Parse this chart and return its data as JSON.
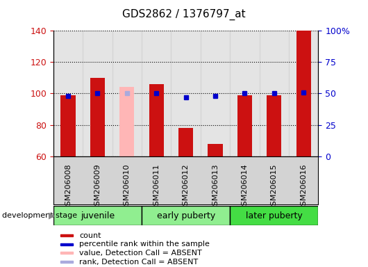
{
  "title": "GDS2862 / 1376797_at",
  "samples": [
    "GSM206008",
    "GSM206009",
    "GSM206010",
    "GSM206011",
    "GSM206012",
    "GSM206013",
    "GSM206014",
    "GSM206015",
    "GSM206016"
  ],
  "count_values": [
    99,
    110,
    null,
    106,
    78,
    68,
    99,
    99,
    140
  ],
  "count_absent_values": [
    null,
    null,
    104,
    null,
    null,
    null,
    null,
    null,
    null
  ],
  "rank_values": [
    48,
    50,
    null,
    50,
    47,
    48,
    50,
    50,
    51
  ],
  "rank_absent_values": [
    null,
    null,
    50,
    null,
    null,
    null,
    null,
    null,
    null
  ],
  "ylim_left": [
    60,
    140
  ],
  "ylim_right": [
    0,
    100
  ],
  "yticks_left": [
    60,
    80,
    100,
    120,
    140
  ],
  "yticks_right": [
    0,
    25,
    50,
    75,
    100
  ],
  "yticklabels_right": [
    "0",
    "25",
    "50",
    "75",
    "100%"
  ],
  "bar_color": "#CC1111",
  "bar_absent_color": "#FFB6B6",
  "rank_color": "#0000CC",
  "rank_absent_color": "#AAAADD",
  "bar_width": 0.5,
  "rank_marker_size": 5,
  "legend_items": [
    {
      "label": "count",
      "color": "#CC1111"
    },
    {
      "label": "percentile rank within the sample",
      "color": "#0000CC"
    },
    {
      "label": "value, Detection Call = ABSENT",
      "color": "#FFB6B6"
    },
    {
      "label": "rank, Detection Call = ABSENT",
      "color": "#AAAADD"
    }
  ],
  "left_tick_color": "#CC1111",
  "right_tick_color": "#0000CC",
  "group_configs": [
    {
      "start": 0,
      "end": 2,
      "label": "juvenile",
      "color": "#90EE90"
    },
    {
      "start": 3,
      "end": 5,
      "label": "early puberty",
      "color": "#90EE90"
    },
    {
      "start": 6,
      "end": 8,
      "label": "later puberty",
      "color": "#44DD44"
    }
  ],
  "dev_stage_label": "development stage",
  "col_bg_color": "#D3D3D3",
  "grid_color": "black",
  "grid_style": "dotted"
}
